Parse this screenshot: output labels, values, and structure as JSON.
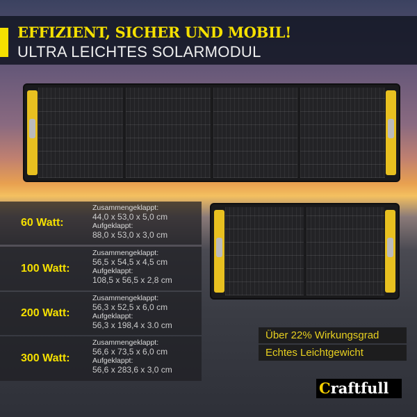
{
  "header": {
    "title": "EFFIZIENT, SICHER UND MOBIL!",
    "subtitle": "ULTRA LEICHTES SOLARMODUL"
  },
  "colors": {
    "accent": "#f5e000",
    "header_bg": "#141826"
  },
  "specs": [
    {
      "watt": "60 Watt:",
      "folded_label": "Zusammengeklappt:",
      "folded": "44,0 x 53,0 x 5,0 cm",
      "open_label": "Aufgeklappt:",
      "open": "88,0 x 53,0 x 3,0 cm"
    },
    {
      "watt": "100 Watt:",
      "folded_label": "Zusammengeklappt:",
      "folded": "56,5 x 54,5 x 4,5 cm",
      "open_label": "Aufgeklappt:",
      "open": "108,5 x 56,5 x 2,8 cm"
    },
    {
      "watt": "200 Watt:",
      "folded_label": "Zusammengeklappt:",
      "folded": "56,3 x 52,5 x 6,0 cm",
      "open_label": "Aufgeklappt:",
      "open": "56,3 x 198,4 x 3.0 cm"
    },
    {
      "watt": "300 Watt:",
      "folded_label": "Zusammengeklappt:",
      "folded": "56,6 x 73,5 x 6,0 cm",
      "open_label": "Aufgeklappt:",
      "open": "56,6 x 283,6 x 3,0 cm"
    }
  ],
  "features": [
    "Über 22% Wirkungsgrad",
    "Echtes Leichtgewicht"
  ],
  "logo": {
    "first": "C",
    "rest": "raftfull"
  }
}
